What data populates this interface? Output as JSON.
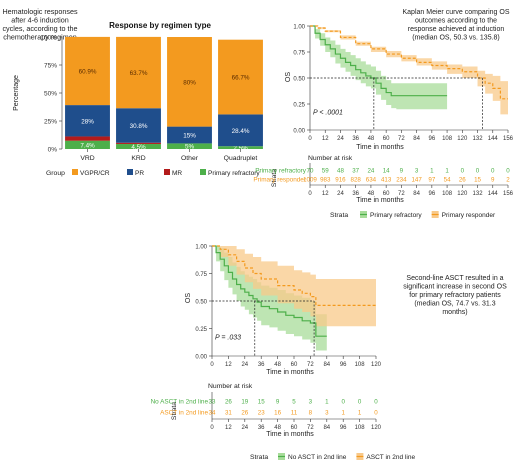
{
  "colors": {
    "vgpr": "#F39A1F",
    "pr": "#1F4E8C",
    "mr": "#B31B1B",
    "primary_refractory": "#4DAF4A",
    "primary_responder": "#F39A1F",
    "no_asct": "#4DAF4A",
    "asct": "#F39A1F",
    "ci_green": "#A8DC9A",
    "ci_orange": "#F8C98A"
  },
  "annotations": {
    "panel_a": "Hematologic responses after 4-6 induction cycles, according to the chemotherapy regimen",
    "panel_b": "Kaplan Meier curve comparing OS outcomes according to the response achieved at induction (median OS, 50.3 vs. 135.8)",
    "panel_c": "Second-line ASCT resulted in a significant increase in second OS for primary refractory patients (median OS, 74.7 vs. 31.3 months)"
  },
  "chart_data": [
    {
      "type": "bar",
      "stacked": true,
      "title": "Response by regimen type",
      "ylabel": "Percentage",
      "ylim": [
        0,
        100
      ],
      "yticks": [
        "0%",
        "25%",
        "50%",
        "75%",
        "100%"
      ],
      "categories": [
        "VRD",
        "KRD",
        "Other",
        "Quadruplet"
      ],
      "legend_title": "Group",
      "legend_position": "bottom",
      "series": [
        {
          "name": "Primary refractory",
          "color": "#4DAF4A",
          "values": [
            7.4,
            4.5,
            5.0,
            2.5
          ],
          "labels": [
            "7.4%",
            "4.5%",
            "5%",
            "2.5%"
          ]
        },
        {
          "name": "MR",
          "color": "#B31B1B",
          "values": [
            3.8,
            1.1,
            0,
            0
          ],
          "labels": [
            "3.8%",
            "1.1%",
            "",
            ""
          ]
        },
        {
          "name": "PR",
          "color": "#1F4E8C",
          "values": [
            28,
            30.8,
            15,
            28.4
          ],
          "labels": [
            "28%",
            "30.8%",
            "15%",
            "28.4%"
          ]
        },
        {
          "name": "VGPR/CR",
          "color": "#F39A1F",
          "values": [
            60.9,
            63.7,
            80,
            66.7
          ],
          "labels": [
            "60.9%",
            "63.7%",
            "80%",
            "66.7%"
          ]
        }
      ]
    },
    {
      "type": "line",
      "step": true,
      "xlabel": "Time in months",
      "ylabel": "OS",
      "xlim": [
        0,
        156
      ],
      "ylim": [
        0,
        1
      ],
      "xticks": [
        0,
        12,
        24,
        36,
        48,
        60,
        72,
        84,
        96,
        108,
        120,
        132,
        144,
        156
      ],
      "yticks": [
        "0.00",
        "0.25",
        "0.50",
        "0.75",
        "1.00"
      ],
      "pvalue": "P < .0001",
      "medians": [
        50.3,
        135.8
      ],
      "series": [
        {
          "name": "Primary refractory",
          "color": "#4DAF4A",
          "x": [
            0,
            4,
            8,
            12,
            16,
            20,
            24,
            28,
            32,
            36,
            40,
            44,
            48,
            52,
            56,
            60,
            64,
            68,
            72,
            80,
            90,
            100,
            108
          ],
          "y": [
            1,
            0.93,
            0.87,
            0.82,
            0.78,
            0.73,
            0.69,
            0.65,
            0.62,
            0.58,
            0.55,
            0.52,
            0.5,
            0.45,
            0.4,
            0.36,
            0.33,
            0.33,
            0.33,
            0.33,
            0.33,
            0.33,
            0.33
          ],
          "lower": [
            1,
            0.88,
            0.81,
            0.75,
            0.7,
            0.64,
            0.6,
            0.56,
            0.52,
            0.48,
            0.45,
            0.42,
            0.4,
            0.34,
            0.29,
            0.24,
            0.21,
            0.2,
            0.2,
            0.2,
            0.2,
            0.2,
            0.2
          ],
          "upper": [
            1,
            0.97,
            0.93,
            0.89,
            0.86,
            0.82,
            0.78,
            0.75,
            0.72,
            0.69,
            0.66,
            0.63,
            0.61,
            0.57,
            0.52,
            0.48,
            0.45,
            0.45,
            0.45,
            0.45,
            0.45,
            0.45,
            0.45
          ]
        },
        {
          "name": "Primary responder",
          "color": "#F39A1F",
          "x": [
            0,
            6,
            12,
            24,
            36,
            48,
            60,
            72,
            84,
            96,
            108,
            120,
            132,
            138,
            144,
            150,
            156
          ],
          "y": [
            1,
            0.98,
            0.95,
            0.89,
            0.83,
            0.78,
            0.73,
            0.69,
            0.65,
            0.62,
            0.59,
            0.56,
            0.5,
            0.45,
            0.4,
            0.3,
            0.3
          ],
          "lower": [
            1,
            0.97,
            0.94,
            0.87,
            0.81,
            0.75,
            0.7,
            0.66,
            0.62,
            0.58,
            0.54,
            0.5,
            0.42,
            0.35,
            0.28,
            0.15,
            0.15
          ],
          "upper": [
            1,
            0.99,
            0.96,
            0.91,
            0.85,
            0.8,
            0.76,
            0.72,
            0.69,
            0.66,
            0.63,
            0.61,
            0.57,
            0.54,
            0.52,
            0.47,
            0.47
          ]
        }
      ],
      "risk_table": {
        "title": "Number at risk",
        "y_title": "Strata",
        "rows": [
          {
            "name": "Primary refractory",
            "color": "#4DAF4A",
            "values": [
              "70",
              "59",
              "48",
              "37",
              "24",
              "14",
              "9",
              "3",
              "1",
              "1",
              "0",
              "0",
              "0",
              "0"
            ]
          },
          {
            "name": "Primary responder",
            "color": "#F39A1F",
            "values": [
              "1009",
              "983",
              "916",
              "828",
              "634",
              "413",
              "234",
              "147",
              "97",
              "54",
              "26",
              "15",
              "9",
              "2"
            ]
          }
        ]
      },
      "legend_title": "Strata",
      "legend_position": "bottom"
    },
    {
      "type": "line",
      "step": true,
      "xlabel": "Time in months",
      "ylabel": "OS",
      "xlim": [
        0,
        120
      ],
      "ylim": [
        0,
        1
      ],
      "xticks": [
        0,
        12,
        24,
        36,
        48,
        60,
        72,
        84,
        96,
        108,
        120
      ],
      "yticks": [
        "0.00",
        "0.25",
        "0.50",
        "0.75",
        "1.00"
      ],
      "pvalue": "P = .033",
      "medians": [
        31.3,
        74.7
      ],
      "series": [
        {
          "name": "No ASCT in 2nd line",
          "color": "#4DAF4A",
          "x": [
            0,
            3,
            6,
            9,
            12,
            15,
            18,
            21,
            24,
            27,
            30,
            33,
            36,
            42,
            48,
            54,
            60,
            66,
            72,
            76,
            80,
            84
          ],
          "y": [
            1,
            0.94,
            0.88,
            0.82,
            0.76,
            0.7,
            0.65,
            0.61,
            0.58,
            0.55,
            0.52,
            0.49,
            0.45,
            0.43,
            0.4,
            0.37,
            0.35,
            0.32,
            0.3,
            0.18,
            0.18,
            0.18
          ],
          "lower": [
            1,
            0.86,
            0.77,
            0.69,
            0.62,
            0.56,
            0.5,
            0.45,
            0.42,
            0.38,
            0.35,
            0.32,
            0.28,
            0.26,
            0.23,
            0.2,
            0.18,
            0.15,
            0.12,
            0.05,
            0.05,
            0.05
          ],
          "upper": [
            1,
            1,
            0.98,
            0.94,
            0.9,
            0.85,
            0.81,
            0.77,
            0.74,
            0.72,
            0.7,
            0.67,
            0.64,
            0.62,
            0.6,
            0.57,
            0.55,
            0.53,
            0.5,
            0.38,
            0.38,
            0.38
          ]
        },
        {
          "name": "ASCT in 2nd line",
          "color": "#F39A1F",
          "x": [
            0,
            6,
            12,
            18,
            24,
            30,
            36,
            48,
            60,
            66,
            72,
            76,
            84,
            96,
            108,
            120
          ],
          "y": [
            1,
            0.97,
            0.92,
            0.86,
            0.8,
            0.75,
            0.7,
            0.64,
            0.6,
            0.57,
            0.54,
            0.46,
            0.46,
            0.46,
            0.46,
            0.46
          ],
          "lower": [
            1,
            0.9,
            0.82,
            0.74,
            0.67,
            0.61,
            0.55,
            0.48,
            0.43,
            0.4,
            0.36,
            0.27,
            0.27,
            0.27,
            0.27,
            0.27
          ],
          "upper": [
            1,
            1,
            1,
            0.97,
            0.93,
            0.9,
            0.86,
            0.82,
            0.78,
            0.76,
            0.74,
            0.7,
            0.7,
            0.7,
            0.7,
            0.7
          ]
        }
      ],
      "risk_table": {
        "title": "Number at risk",
        "y_title": "Strata",
        "rows": [
          {
            "name": "No ASCT in 2nd line",
            "color": "#4DAF4A",
            "values": [
              "33",
              "26",
              "19",
              "15",
              "9",
              "5",
              "3",
              "1",
              "0",
              "0",
              "0"
            ]
          },
          {
            "name": "ASCT in 2nd line",
            "color": "#F39A1F",
            "values": [
              "34",
              "31",
              "26",
              "23",
              "16",
              "11",
              "8",
              "3",
              "1",
              "1",
              "0"
            ]
          }
        ]
      },
      "legend_title": "Strata",
      "legend_position": "bottom"
    }
  ]
}
